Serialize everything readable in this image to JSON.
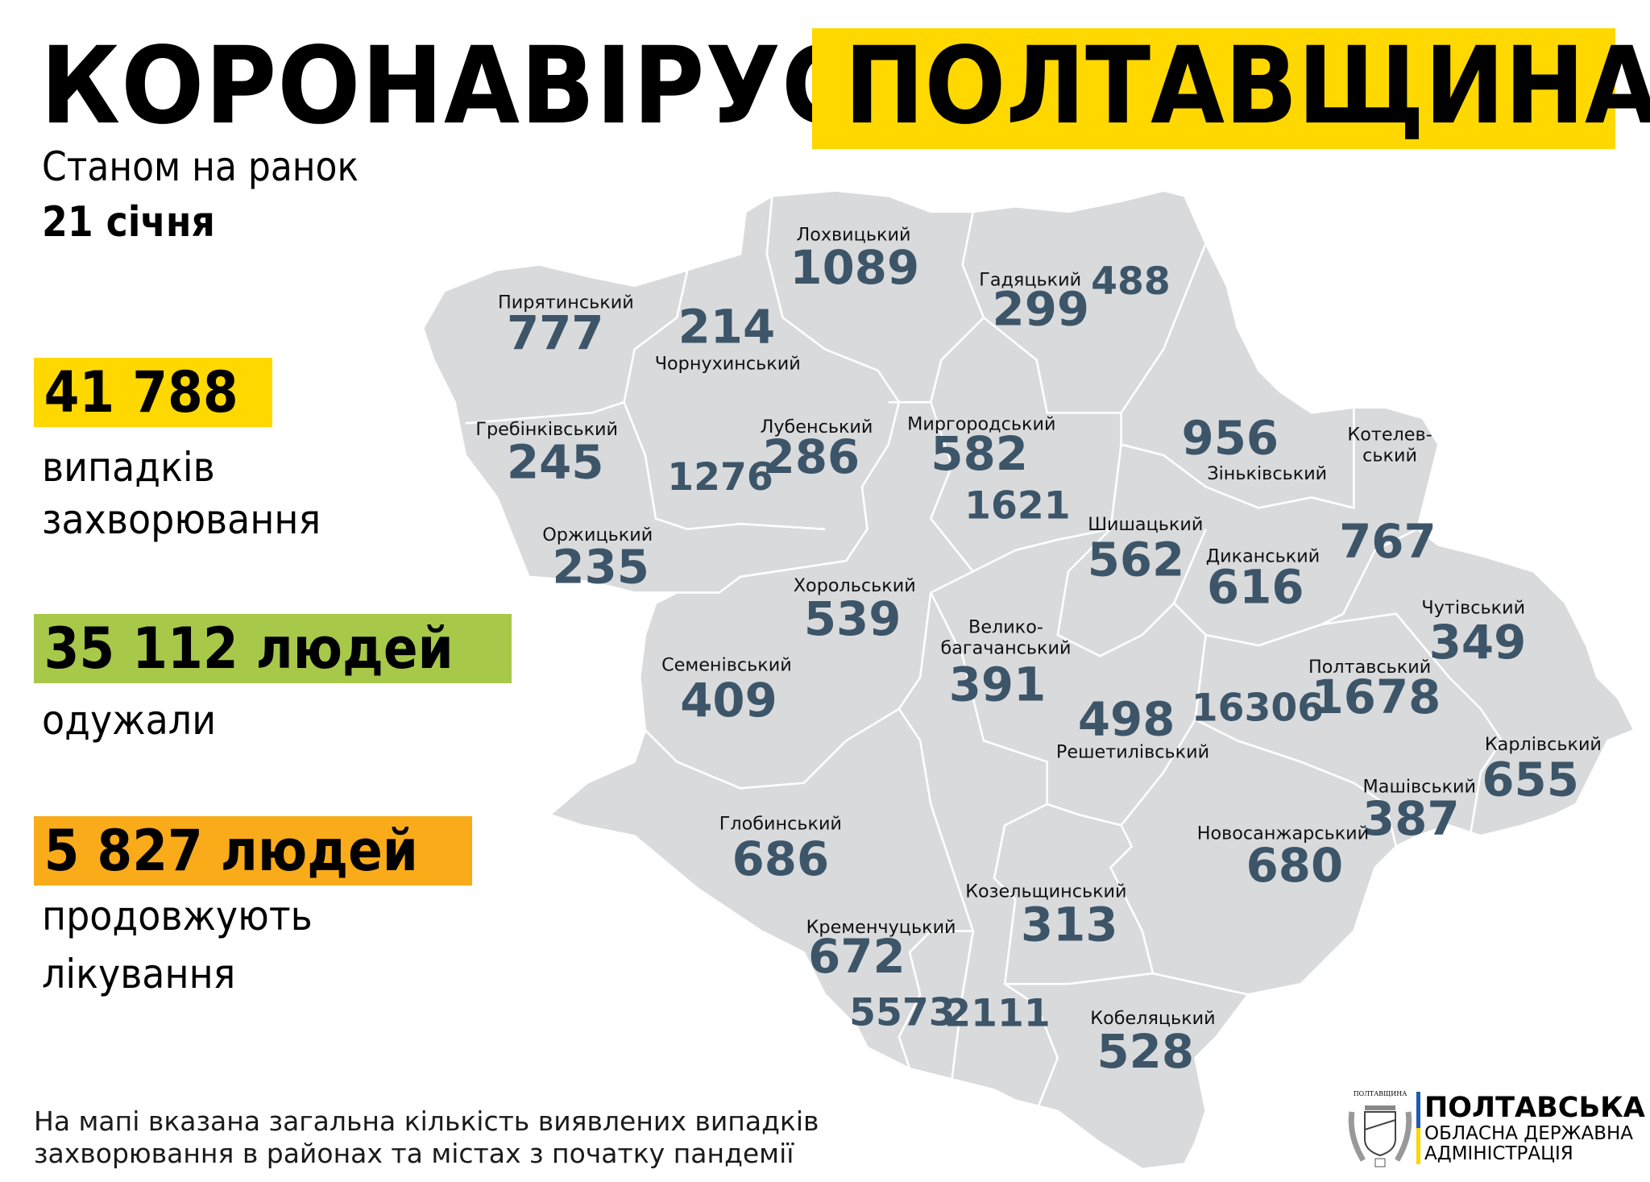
{
  "header": {
    "title": "КОРОНАВІРУС.",
    "region": "ПОЛТАВЩИНА",
    "as_of": "Станом на ранок",
    "date": "21 січня"
  },
  "stats": {
    "cases": {
      "value": "41 788",
      "label_1": "випадків",
      "label_2": "захворювання",
      "color": "#ffd800"
    },
    "recovered": {
      "value": "35 112 людей",
      "label_1": "одужали",
      "color": "#a8c84a"
    },
    "treatment": {
      "value": "5 827 людей",
      "label_1": "продовжують",
      "label_2": "лікування",
      "color": "#f9ab1a"
    }
  },
  "map": {
    "fill": "#d9dadc",
    "number_color": "#3d5568",
    "districts": [
      {
        "name": "Лохвицький",
        "value": "1089"
      },
      {
        "name": "Гадяцький",
        "value": "299"
      },
      {
        "name": "",
        "value": "488"
      },
      {
        "name": "Пирятинський",
        "value": "777"
      },
      {
        "name": "Чорнухинський",
        "value": "214"
      },
      {
        "name": "Гребінківський",
        "value": "245"
      },
      {
        "name": "Лубенський",
        "value": "286"
      },
      {
        "name": "",
        "value": "1276"
      },
      {
        "name": "Миргородський",
        "value": "582"
      },
      {
        "name": "",
        "value": "1621"
      },
      {
        "name": "Зіньківський",
        "value": "956"
      },
      {
        "name": "Котелев-",
        "name_2": "ський",
        "value": "767"
      },
      {
        "name": "Оржицький",
        "value": "235"
      },
      {
        "name": "Шишацький",
        "value": "562"
      },
      {
        "name": "Диканський",
        "value": "616"
      },
      {
        "name": "Хорольський",
        "value": "539"
      },
      {
        "name": "Чутівський",
        "value": "349"
      },
      {
        "name": "Семенівський",
        "value": "409"
      },
      {
        "name": "Велико-",
        "name_2": "багачанський",
        "value": "391"
      },
      {
        "name": "Полтавський",
        "value": "1678"
      },
      {
        "name": "",
        "value": "16306"
      },
      {
        "name": "Решетилівський",
        "value": "498"
      },
      {
        "name": "Карлівський",
        "value": "655"
      },
      {
        "name": "Машівський",
        "value": "387"
      },
      {
        "name": "Глобинський",
        "value": "686"
      },
      {
        "name": "Новосанжарський",
        "value": "680"
      },
      {
        "name": "Козельщинський",
        "value": "313"
      },
      {
        "name": "Кременчуцький",
        "value": "672"
      },
      {
        "name": "",
        "value": "5573"
      },
      {
        "name": "",
        "value": "2111"
      },
      {
        "name": "Кобеляцький",
        "value": "528"
      }
    ]
  },
  "footer": {
    "line_1": "На мапі вказана загальна кількість виявлених випадків",
    "line_2": "захворювання в районах та містах з початку пандемії"
  },
  "logo": {
    "emblem_text": "ПОЛТАВЩИНА",
    "line_1": "ПОЛТАВСЬКА",
    "line_2": "ОБЛАСНА ДЕРЖАВНА",
    "line_3": "АДМІНІСТРАЦІЯ"
  }
}
